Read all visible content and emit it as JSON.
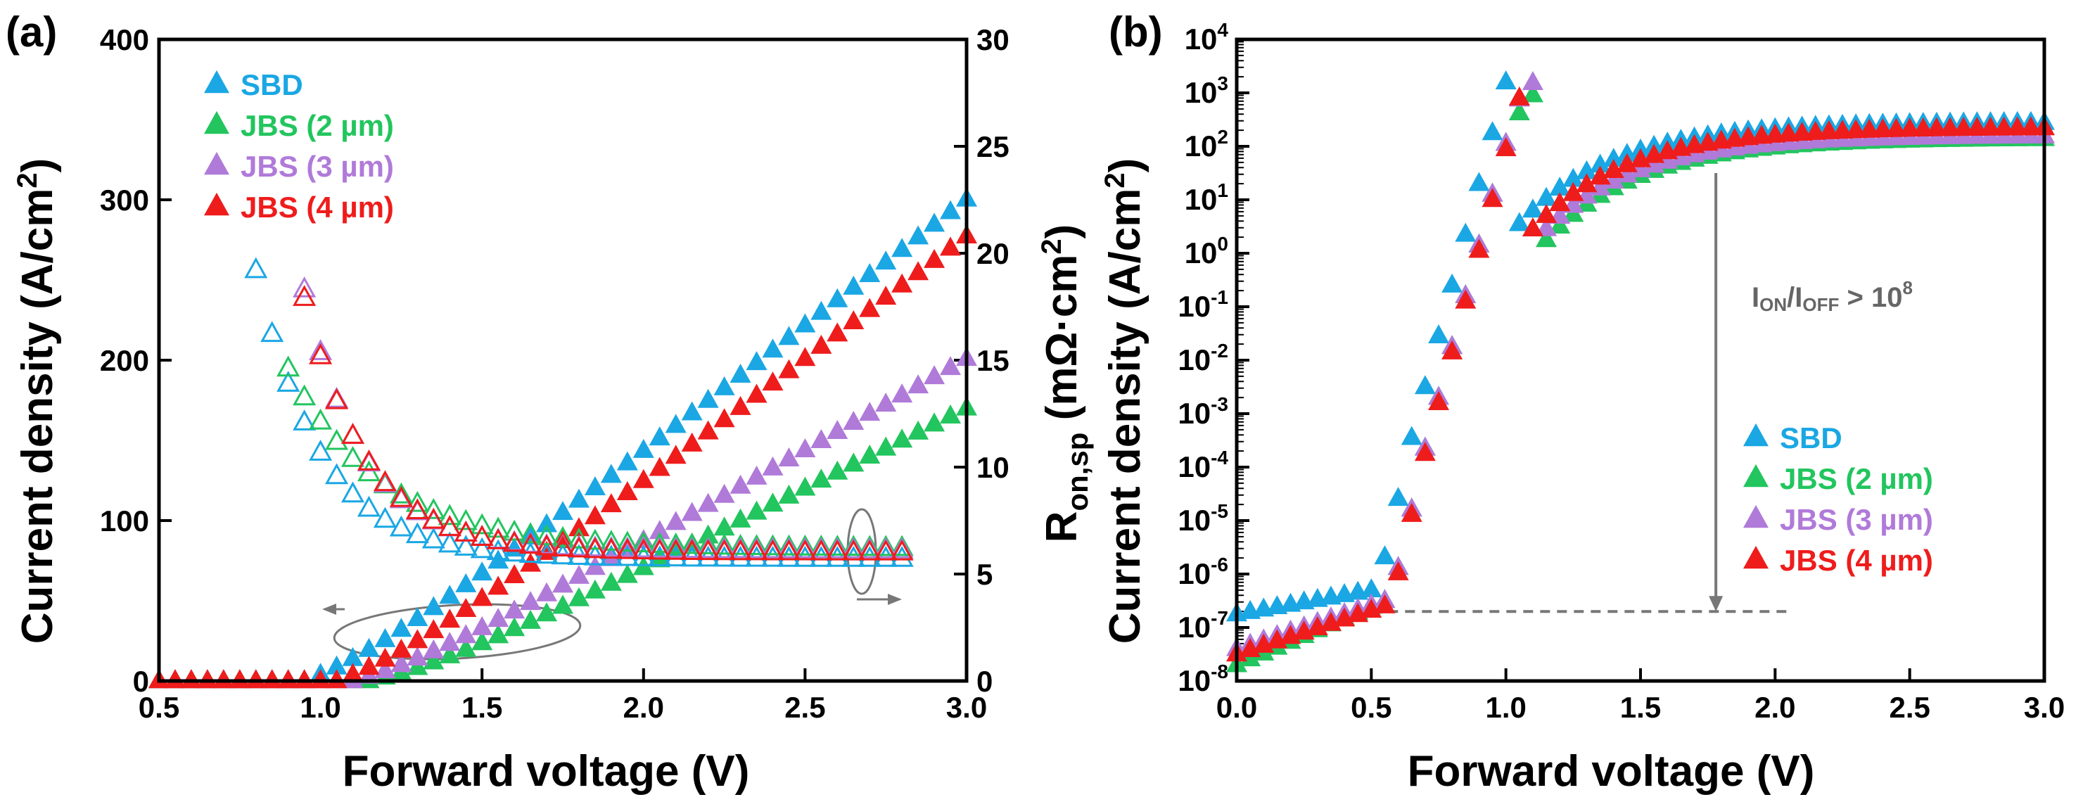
{
  "colors": {
    "SBD": "#1aa7e4",
    "JBS (2 µm)": "#22c55e",
    "JBS (3 µm)": "#b07ad9",
    "JBS (4 µm)": "#ef1c1c",
    "annotation": "#777777"
  },
  "chart_data": [
    {
      "type": "scatter",
      "panel_label": "(a)",
      "xlabel": "Forward voltage (V)",
      "ylabel": "Current density (A/cm²)",
      "ylabel_main": "Current density (A/cm",
      "ylabel_sup": "2",
      "ylabel_end": ")",
      "y2label": "R_on,sp (mΩ·cm²)",
      "y2label_main": "R",
      "y2label_sub": "on,sp",
      "y2label_mid": " (mΩ·cm",
      "y2label_sup": "2",
      "y2label_end": ")",
      "xlim": [
        0.5,
        3.0
      ],
      "ylim": [
        0,
        400
      ],
      "y2lim": [
        0,
        30
      ],
      "xticks": [
        "0.5",
        "1.0",
        "1.5",
        "2.0",
        "2.5",
        "3.0"
      ],
      "yticks": [
        "0",
        "100",
        "200",
        "300",
        "400"
      ],
      "y2ticks": [
        "0",
        "5",
        "10",
        "15",
        "20",
        "25",
        "30"
      ],
      "legend": [
        "SBD",
        "JBS (2 µm)",
        "JBS (3 µm)",
        "JBS (4 µm)"
      ],
      "legend_position": "top-left",
      "series": [
        {
          "name": "SBD",
          "axis": "left",
          "marker": "filled-triangle",
          "x_start": 0.5,
          "x_step": 0.05,
          "turn_on": 0.95,
          "slope": 157,
          "curvature": 0.55
        },
        {
          "name": "JBS (2 µm)",
          "axis": "left",
          "marker": "filled-triangle",
          "x_start": 0.5,
          "x_step": 0.05,
          "turn_on": 1.15,
          "slope": 100,
          "curvature": 0.6
        },
        {
          "name": "JBS (3 µm)",
          "axis": "left",
          "marker": "filled-triangle",
          "x_start": 0.5,
          "x_step": 0.05,
          "turn_on": 1.1,
          "slope": 114,
          "curvature": 0.55
        },
        {
          "name": "JBS (4 µm)",
          "axis": "left",
          "marker": "filled-triangle",
          "x_start": 0.5,
          "x_step": 0.05,
          "turn_on": 1.05,
          "slope": 153,
          "curvature": 0.55
        },
        {
          "name": "SBD",
          "axis": "right",
          "marker": "open-triangle",
          "x_start": 0.8,
          "x_end": 2.8,
          "x_step": 0.05,
          "r_min": 5.7,
          "r_amp": 13.5,
          "decay": 5.0
        },
        {
          "name": "JBS (2 µm)",
          "axis": "right",
          "marker": "open-triangle",
          "x_start": 0.9,
          "x_end": 2.8,
          "x_step": 0.05,
          "r_min": 6.2,
          "r_amp": 8.4,
          "decay": 3.5
        },
        {
          "name": "JBS (3 µm)",
          "axis": "right",
          "marker": "open-triangle",
          "x_start": 0.95,
          "x_end": 2.8,
          "x_step": 0.05,
          "r_min": 6.1,
          "r_amp": 12.2,
          "decay": 5.5
        },
        {
          "name": "JBS (4 µm)",
          "axis": "right",
          "marker": "open-triangle",
          "x_start": 0.95,
          "x_end": 2.8,
          "x_step": 0.05,
          "r_min": 6.0,
          "r_amp": 11.9,
          "decay": 5.2
        }
      ],
      "annotations": {
        "left_arrow_target": "left axis",
        "right_arrow_target": "right axis"
      }
    },
    {
      "type": "scatter",
      "panel_label": "(b)",
      "xlabel": "Forward voltage (V)",
      "ylabel": "Current density (A/cm²)",
      "ylabel_main": "Current density (A/cm",
      "ylabel_sup": "2",
      "ylabel_end": ")",
      "yscale": "log",
      "xlim": [
        0.0,
        3.0
      ],
      "ylim_exp": [
        -8,
        4
      ],
      "xticks": [
        "0.0",
        "0.5",
        "1.0",
        "1.5",
        "2.0",
        "2.5",
        "3.0"
      ],
      "ytick_base": "10",
      "ytick_exps": [
        "-8",
        "-7",
        "-6",
        "-5",
        "-4",
        "-3",
        "-2",
        "-1",
        "0",
        "1",
        "2",
        "3",
        "4"
      ],
      "legend": [
        "SBD",
        "JBS (2 µm)",
        "JBS (3 µm)",
        "JBS (4 µm)"
      ],
      "legend_position": "center-right",
      "series": [
        {
          "name": "SBD",
          "x_step": 0.05,
          "leak_start": -6.75,
          "leak_end": -6.3,
          "knee": 0.5,
          "ideality_decade_per_v": 19.0,
          "sat": 2.45,
          "sat_knee": 1.05
        },
        {
          "name": "JBS (2 µm)",
          "x_step": 0.05,
          "leak_start": -7.7,
          "leak_end": -6.5,
          "knee": 0.55,
          "ideality_decade_per_v": 19.0,
          "sat": 2.15,
          "sat_knee": 1.15
        },
        {
          "name": "JBS (3 µm)",
          "x_step": 0.05,
          "leak_start": -7.4,
          "leak_end": -6.5,
          "knee": 0.55,
          "ideality_decade_per_v": 19.0,
          "sat": 2.2,
          "sat_knee": 1.12
        },
        {
          "name": "JBS (4 µm)",
          "x_step": 0.05,
          "leak_start": -7.5,
          "leak_end": -6.6,
          "knee": 0.55,
          "ideality_decade_per_v": 19.0,
          "sat": 2.35,
          "sat_knee": 1.1
        }
      ],
      "annotation_text": {
        "I1": "I",
        "ON": "ON",
        "slash": "/I",
        "OFF": "OFF",
        "gt": " > 10",
        "exp": "8"
      },
      "annotation_values": {
        "arrow_x": 1.78,
        "arrow_top_exp": 1.5,
        "arrow_bottom_exp": -6.7,
        "dash_x_start": 0.5,
        "dash_x_end": 2.05,
        "dash_level_exp": -6.7
      }
    }
  ]
}
